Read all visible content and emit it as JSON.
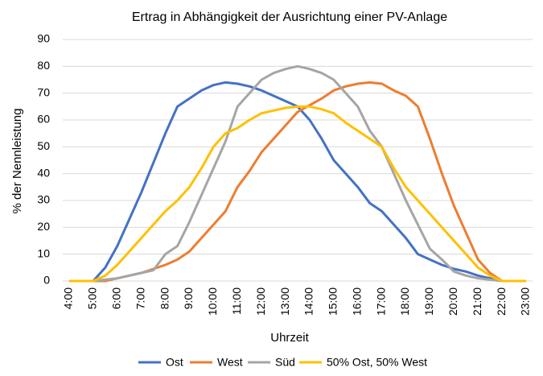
{
  "chart_data": {
    "type": "line",
    "title": "Ertrag in Abhängigkeit der Ausrichtung einer PV-Anlage",
    "xlabel": "Uhrzeit",
    "ylabel": "% der Nennleistung",
    "categories": [
      "4:00",
      null,
      "5:00",
      null,
      "6:00",
      null,
      "7:00",
      null,
      "8:00",
      null,
      "9:00",
      null,
      "10:00",
      null,
      "11:00",
      null,
      "12:00",
      null,
      "13:00",
      null,
      "14:00",
      null,
      "15:00",
      null,
      "16:00",
      null,
      "17:00",
      null,
      "18:00",
      null,
      "19:00",
      null,
      "20:00",
      null,
      "21:00",
      null,
      "22:00",
      null,
      "23:00"
    ],
    "series": [
      {
        "name": "Ost",
        "color": "#4472c4",
        "values": [
          0,
          0,
          0,
          5,
          13,
          23,
          33,
          44,
          55,
          65,
          68,
          71,
          73,
          74,
          73.5,
          72.5,
          71,
          69,
          67,
          65,
          60,
          53,
          45,
          40,
          35,
          29,
          26,
          21,
          16,
          10,
          8,
          6,
          4.5,
          3.5,
          2,
          1,
          0,
          0,
          0
        ]
      },
      {
        "name": "West",
        "color": "#ed7d31",
        "values": [
          0,
          0,
          0,
          0,
          1,
          2,
          3,
          4.5,
          6,
          8,
          11,
          16,
          21,
          26,
          35,
          41,
          48,
          53,
          58,
          63,
          65.5,
          68,
          71,
          72.5,
          73.5,
          74,
          73.5,
          71,
          69,
          65,
          53,
          40,
          28,
          18,
          8,
          3,
          0,
          0,
          0
        ]
      },
      {
        "name": "Süd",
        "color": "#a5a5a5",
        "values": [
          0,
          0,
          0,
          0.5,
          1,
          2,
          3,
          4,
          10,
          13,
          22,
          32,
          42,
          52,
          65,
          70,
          75,
          77.5,
          79,
          80,
          79,
          77.5,
          75,
          70,
          65,
          56,
          50,
          40,
          30,
          21,
          12,
          8,
          3.5,
          2,
          1,
          0.5,
          0,
          0,
          0
        ]
      },
      {
        "name": "50% Ost, 50% West",
        "color": "#ffc000",
        "values": [
          0,
          0,
          0,
          2,
          6,
          11,
          16,
          21,
          26,
          30,
          35,
          42,
          50,
          55,
          57,
          60,
          62.5,
          63.5,
          64.5,
          65,
          65,
          64,
          62.5,
          59,
          56,
          53,
          50,
          42,
          35,
          30,
          25,
          20,
          15,
          10,
          5,
          2,
          0,
          0,
          0
        ]
      }
    ],
    "ylim": [
      0,
      90
    ],
    "yticks": [
      0,
      10,
      20,
      30,
      40,
      50,
      60,
      70,
      80,
      90
    ],
    "grid": true,
    "legend": "bottom"
  }
}
